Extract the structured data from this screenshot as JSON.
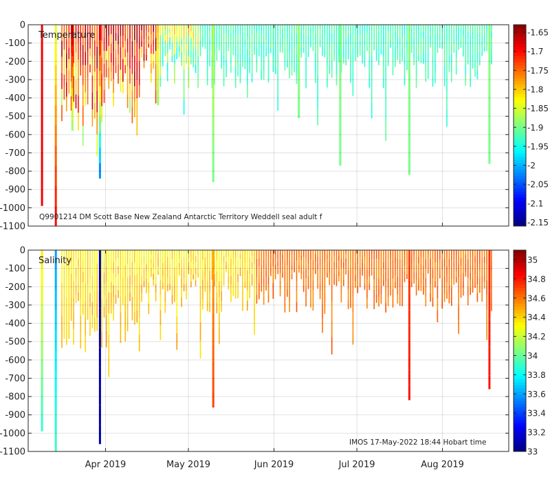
{
  "chart_data": [
    {
      "type": "heatmap",
      "panel_label": "Temperature",
      "annotation": "Q9901214 DM Scott Base New Zealand Antarctic Territory Weddell seal adult f",
      "y_ticks": [
        "0",
        "-100",
        "-200",
        "-300",
        "-400",
        "-500",
        "-600",
        "-700",
        "-800",
        "-900",
        "-1000",
        "-1100"
      ],
      "ylim": [
        -1100,
        0
      ],
      "xlim": [
        "2019-03-04",
        "2019-08-25"
      ],
      "x_ticks": [],
      "colorbar_ticks": [
        "-1.65",
        "-1.7",
        "-1.75",
        "-1.8",
        "-1.85",
        "-1.9",
        "-1.95",
        "-2",
        "-2.05",
        "-2.1",
        "-2.15"
      ],
      "colorbar_range": [
        -2.16,
        -1.63
      ],
      "grid": true,
      "profiles": [
        {
          "date": "2019-03-09",
          "max_depth": -990,
          "top_value": -1.69,
          "deep_value": -1.69,
          "color_name": "orange"
        },
        {
          "date": "2019-03-14",
          "max_depth": -1100,
          "top_value": -1.84,
          "deep_value": -1.7,
          "color_name": "orange"
        },
        {
          "date": "2019-03-20",
          "max_depth": -580,
          "top_value": -1.66,
          "deep_value": -1.88,
          "color_name": "dark red"
        },
        {
          "date": "2019-03-30",
          "max_depth": -840,
          "top_value": -1.68,
          "deep_value": -2.02,
          "color_name": "cyan"
        },
        {
          "date": "2019-04-20",
          "max_depth": -440,
          "top_value": -1.8,
          "deep_value": -1.88,
          "color_name": "yellow-green"
        },
        {
          "date": "2019-05-10",
          "max_depth": -860,
          "top_value": -1.86,
          "deep_value": -1.9,
          "color_name": "green"
        },
        {
          "date": "2019-06-10",
          "max_depth": -510,
          "top_value": -1.88,
          "deep_value": -1.9,
          "color_name": "green"
        },
        {
          "date": "2019-06-25",
          "max_depth": -770,
          "top_value": -1.89,
          "deep_value": -1.9,
          "color_name": "green"
        },
        {
          "date": "2019-07-20",
          "max_depth": -820,
          "top_value": -1.89,
          "deep_value": -1.9,
          "color_name": "green"
        },
        {
          "date": "2019-08-18",
          "max_depth": -760,
          "top_value": -1.89,
          "deep_value": -1.9,
          "color_name": "green"
        }
      ]
    },
    {
      "type": "heatmap",
      "panel_label": "Salinity",
      "annotation": "IMOS 17-May-2022 18:44 Hobart time",
      "y_ticks": [
        "0",
        "-100",
        "-200",
        "-300",
        "-400",
        "-500",
        "-600",
        "-700",
        "-800",
        "-900",
        "-1000",
        "-1100"
      ],
      "ylim": [
        -1100,
        0
      ],
      "xlim": [
        "2019-03-04",
        "2019-08-25"
      ],
      "x_ticks": [
        "Apr 2019",
        "May 2019",
        "Jun 2019",
        "Jul 2019",
        "Aug 2019"
      ],
      "colorbar_ticks": [
        "35",
        "34.8",
        "34.6",
        "34.4",
        "34.2",
        "34",
        "33.8",
        "33.6",
        "33.4",
        "33.2",
        "33"
      ],
      "colorbar_range": [
        33.0,
        35.1
      ],
      "grid": true,
      "profiles": [
        {
          "date": "2019-03-09",
          "max_depth": -990,
          "top_value": 34.35,
          "deep_value": 33.9,
          "color_name": "green"
        },
        {
          "date": "2019-03-14",
          "max_depth": -1100,
          "top_value": 33.6,
          "deep_value": 33.9,
          "color_name": "teal-green"
        },
        {
          "date": "2019-03-30",
          "max_depth": -1060,
          "top_value": 33.1,
          "deep_value": 33.1,
          "color_name": "dark blue"
        },
        {
          "date": "2019-05-10",
          "max_depth": -860,
          "top_value": 34.5,
          "deep_value": 34.7,
          "color_name": "orange"
        },
        {
          "date": "2019-07-20",
          "max_depth": -820,
          "top_value": 34.7,
          "deep_value": 34.8,
          "color_name": "dark orange"
        },
        {
          "date": "2019-08-18",
          "max_depth": -760,
          "top_value": 34.75,
          "deep_value": 34.8,
          "color_name": "dark orange"
        }
      ]
    }
  ]
}
